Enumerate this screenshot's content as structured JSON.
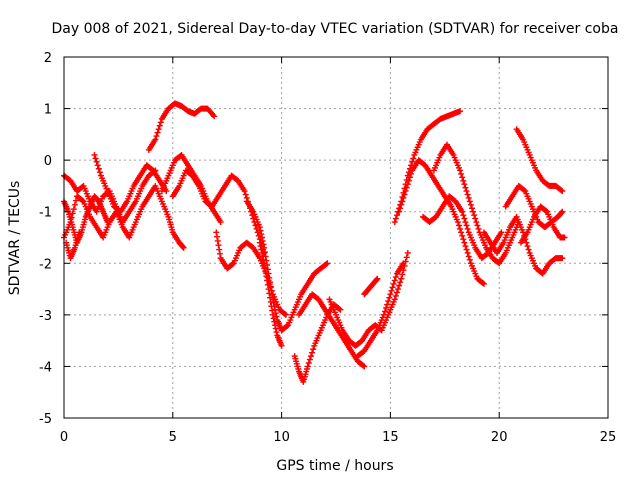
{
  "chart_data": {
    "type": "scatter",
    "title": "Day 008 of 2021, Sidereal Day-to-day VTEC variation (SDTVAR) for receiver coba",
    "xlabel": "GPS time / hours",
    "ylabel": "SDTVAR / TECUs",
    "xlim": [
      0,
      25
    ],
    "ylim": [
      -5,
      2
    ],
    "xticks": [
      "0",
      "5",
      "10",
      "15",
      "20",
      "25"
    ],
    "yticks": [
      "-5",
      "-4",
      "-3",
      "-2",
      "-1",
      "0",
      "1",
      "2"
    ],
    "grid": true,
    "marker": "plus",
    "color": "#ff0000",
    "series": [
      {
        "x": [
          0.0,
          0.3,
          0.6,
          0.9,
          1.2,
          1.5,
          1.8,
          2.1,
          2.4,
          2.7,
          3.0,
          3.3,
          3.6,
          3.9,
          4.2,
          4.5,
          4.8,
          5.0,
          5.3,
          5.5
        ],
        "y": [
          -1.5,
          -1.2,
          -0.7,
          -0.8,
          -1.1,
          -1.3,
          -1.5,
          -1.2,
          -1.0,
          -1.3,
          -1.5,
          -1.2,
          -0.9,
          -0.7,
          -0.5,
          -0.8,
          -1.1,
          -1.4,
          -1.6,
          -1.7
        ]
      },
      {
        "x": [
          0.0,
          0.3,
          0.6,
          0.9,
          1.2,
          1.5,
          1.8,
          2.1,
          2.4,
          2.7,
          3.0,
          3.3,
          3.6,
          3.9,
          4.2
        ],
        "y": [
          -0.3,
          -0.4,
          -0.6,
          -0.5,
          -0.8,
          -1.0,
          -0.7,
          -0.6,
          -0.9,
          -1.2,
          -1.0,
          -0.8,
          -0.5,
          -0.3,
          -0.2
        ]
      },
      {
        "x": [
          0.0,
          0.2,
          0.4,
          0.6,
          0.8,
          1.0,
          1.2,
          1.4,
          1.6,
          1.8,
          2.0
        ],
        "y": [
          -0.8,
          -1.0,
          -1.3,
          -1.6,
          -1.4,
          -1.1,
          -0.9,
          -0.7,
          -0.8,
          -1.0,
          -1.2
        ]
      },
      {
        "x": [
          0.1,
          0.3,
          0.5,
          0.7
        ],
        "y": [
          -1.6,
          -1.9,
          -1.7,
          -1.4
        ]
      },
      {
        "x": [
          1.4,
          1.7,
          2.0,
          2.3,
          2.6,
          2.9,
          3.2,
          3.5,
          3.8,
          4.1,
          4.4,
          4.7
        ],
        "y": [
          0.1,
          -0.3,
          -0.6,
          -0.9,
          -1.0,
          -0.8,
          -0.5,
          -0.3,
          -0.1,
          -0.2,
          -0.4,
          -0.6
        ]
      },
      {
        "x": [
          3.9,
          4.2,
          4.5,
          4.8,
          5.1,
          5.4,
          5.7,
          6.0,
          6.3,
          6.6,
          6.9
        ],
        "y": [
          0.2,
          0.4,
          0.8,
          1.0,
          1.1,
          1.05,
          0.95,
          0.9,
          1.0,
          1.0,
          0.85
        ]
      },
      {
        "x": [
          4.5,
          4.8,
          5.1,
          5.4,
          5.7,
          6.0,
          6.3,
          6.6,
          6.9,
          7.2
        ],
        "y": [
          -0.6,
          -0.3,
          0.0,
          0.1,
          -0.1,
          -0.3,
          -0.5,
          -0.8,
          -1.0,
          -1.2
        ]
      },
      {
        "x": [
          5.0,
          5.3,
          5.6,
          5.9,
          6.2,
          6.5,
          6.8,
          7.1,
          7.4,
          7.7,
          8.0,
          8.3,
          8.6,
          8.9,
          9.2
        ],
        "y": [
          -0.7,
          -0.5,
          -0.2,
          -0.3,
          -0.5,
          -0.8,
          -0.9,
          -0.7,
          -0.5,
          -0.3,
          -0.4,
          -0.6,
          -1.0,
          -1.4,
          -1.8
        ]
      },
      {
        "x": [
          7.0,
          7.2,
          7.5,
          7.8,
          8.1,
          8.4,
          8.7,
          9.0,
          9.3,
          9.6,
          9.9,
          10.2
        ],
        "y": [
          -1.4,
          -1.9,
          -2.1,
          -2.0,
          -1.7,
          -1.6,
          -1.7,
          -1.9,
          -2.2,
          -2.6,
          -2.9,
          -3.0
        ]
      },
      {
        "x": [
          8.4,
          8.7,
          9.0,
          9.2,
          9.4,
          9.6,
          9.8,
          10.0,
          10.3,
          10.6,
          10.9,
          11.2,
          11.5,
          11.8,
          12.1
        ],
        "y": [
          -0.8,
          -1.0,
          -1.3,
          -1.7,
          -2.2,
          -2.7,
          -3.1,
          -3.3,
          -3.2,
          -2.9,
          -2.6,
          -2.4,
          -2.2,
          -2.1,
          -2.0
        ]
      },
      {
        "x": [
          9.0,
          9.2,
          9.4,
          9.6,
          9.8,
          10.0
        ],
        "y": [
          -1.6,
          -2.0,
          -2.5,
          -3.0,
          -3.4,
          -3.6
        ]
      },
      {
        "x": [
          10.6,
          10.8,
          11.0,
          11.2,
          11.5,
          11.8,
          12.1,
          12.4,
          12.7
        ],
        "y": [
          -3.8,
          -4.1,
          -4.3,
          -4.0,
          -3.6,
          -3.3,
          -3.0,
          -2.8,
          -2.9
        ]
      },
      {
        "x": [
          10.8,
          11.1,
          11.4,
          11.7,
          12.0,
          12.3,
          12.6,
          12.9,
          13.2,
          13.5,
          13.8
        ],
        "y": [
          -3.0,
          -2.8,
          -2.6,
          -2.7,
          -2.9,
          -3.1,
          -3.3,
          -3.5,
          -3.7,
          -3.9,
          -4.0
        ]
      },
      {
        "x": [
          12.2,
          12.5,
          12.8,
          13.1,
          13.4,
          13.7,
          14.0,
          14.3,
          14.6,
          14.9,
          15.2,
          15.5,
          15.8
        ],
        "y": [
          -2.7,
          -3.0,
          -3.3,
          -3.5,
          -3.6,
          -3.5,
          -3.3,
          -3.2,
          -3.3,
          -3.0,
          -2.7,
          -2.3,
          -1.8
        ]
      },
      {
        "x": [
          13.5,
          13.8,
          14.1,
          14.4,
          14.7,
          15.0,
          15.3,
          15.6
        ],
        "y": [
          -3.8,
          -3.7,
          -3.5,
          -3.3,
          -3.0,
          -2.6,
          -2.2,
          -2.0
        ]
      },
      {
        "x": [
          13.8,
          14.0,
          14.2,
          14.4
        ],
        "y": [
          -2.6,
          -2.5,
          -2.4,
          -2.3
        ]
      },
      {
        "x": [
          15.2,
          15.5,
          15.8,
          16.1,
          16.4,
          16.7,
          17.0,
          17.3,
          17.6,
          17.9,
          18.2
        ],
        "y": [
          -1.2,
          -0.8,
          -0.3,
          0.1,
          0.4,
          0.6,
          0.7,
          0.8,
          0.85,
          0.9,
          0.95
        ]
      },
      {
        "x": [
          15.4,
          15.7,
          16.0,
          16.3,
          16.6,
          16.9,
          17.2,
          17.5,
          17.8,
          18.1,
          18.4,
          18.7,
          19.0,
          19.3
        ],
        "y": [
          -1.0,
          -0.6,
          -0.2,
          0.0,
          -0.1,
          -0.3,
          -0.5,
          -0.7,
          -0.9,
          -1.2,
          -1.6,
          -2.0,
          -2.3,
          -2.4
        ]
      },
      {
        "x": [
          16.5,
          16.8,
          17.1,
          17.4,
          17.7,
          18.0,
          18.3,
          18.6,
          18.9,
          19.2,
          19.5,
          19.8,
          20.1
        ],
        "y": [
          -1.1,
          -1.2,
          -1.1,
          -0.9,
          -0.7,
          -0.8,
          -1.0,
          -1.4,
          -1.7,
          -1.9,
          -1.8,
          -1.6,
          -1.4
        ]
      },
      {
        "x": [
          17.0,
          17.3,
          17.6,
          17.9,
          18.2,
          18.5,
          18.8,
          19.1,
          19.4,
          19.7,
          20.0,
          20.3,
          20.6,
          20.9
        ],
        "y": [
          -0.2,
          0.1,
          0.3,
          0.1,
          -0.2,
          -0.6,
          -1.0,
          -1.4,
          -1.7,
          -1.9,
          -2.0,
          -1.8,
          -1.5,
          -1.2
        ]
      },
      {
        "x": [
          19.3,
          19.6,
          19.9,
          20.2,
          20.5,
          20.8,
          21.1,
          21.4,
          21.7,
          22.0,
          22.3,
          22.6,
          22.9
        ],
        "y": [
          -1.4,
          -1.6,
          -1.8,
          -1.6,
          -1.3,
          -1.1,
          -1.4,
          -1.8,
          -2.1,
          -2.2,
          -2.0,
          -1.9,
          -1.9
        ]
      },
      {
        "x": [
          20.3,
          20.6,
          20.9,
          21.2,
          21.5,
          21.8,
          22.1,
          22.4,
          22.7,
          22.9
        ],
        "y": [
          -0.9,
          -0.7,
          -0.5,
          -0.6,
          -0.9,
          -1.2,
          -1.3,
          -1.2,
          -1.1,
          -1.0
        ]
      },
      {
        "x": [
          20.8,
          21.1,
          21.4,
          21.7,
          22.0,
          22.3,
          22.6,
          22.9
        ],
        "y": [
          0.6,
          0.4,
          0.1,
          -0.2,
          -0.4,
          -0.5,
          -0.5,
          -0.6
        ]
      },
      {
        "x": [
          21.0,
          21.3,
          21.6,
          21.9,
          22.2,
          22.5,
          22.8,
          23.0
        ],
        "y": [
          -1.6,
          -1.4,
          -1.1,
          -0.9,
          -1.0,
          -1.3,
          -1.5,
          -1.5
        ]
      }
    ]
  }
}
